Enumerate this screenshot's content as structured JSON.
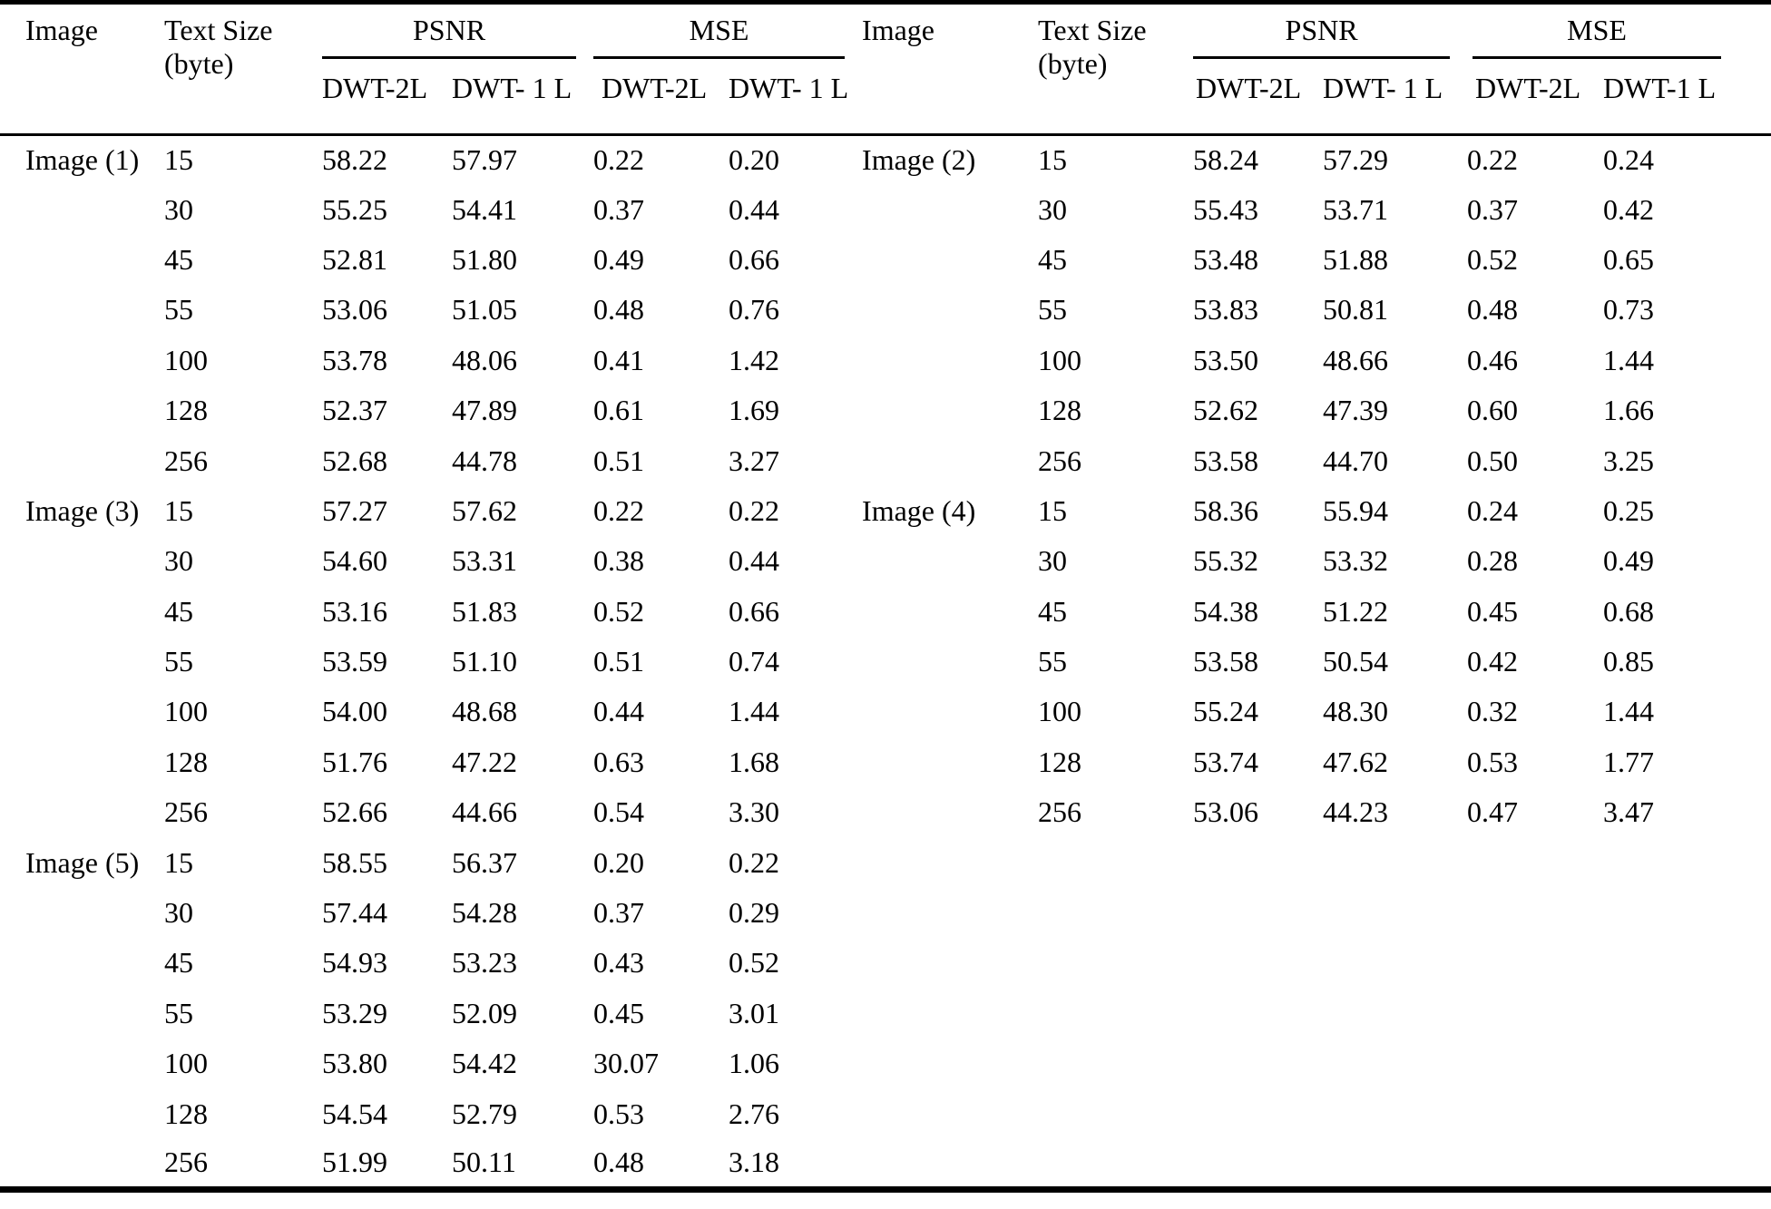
{
  "header": {
    "image_label": "Image",
    "text_size_line1": "Text Size",
    "text_size_line2": "(byte)",
    "psnr_label": "PSNR",
    "mse_label": "MSE",
    "sub_labels": [
      "DWT-2L",
      "DWT- 1 L",
      "DWT-2L",
      "DWT- 1 L",
      "DWT-2L",
      "DWT- 1 L",
      "DWT-2L",
      "DWT-1 L"
    ]
  },
  "left_groups": [
    {
      "label": "Image (1)",
      "rows": [
        [
          "15",
          "58.22",
          "57.97",
          "0.22",
          "0.20"
        ],
        [
          "30",
          "55.25",
          "54.41",
          "0.37",
          "0.44"
        ],
        [
          "45",
          "52.81",
          "51.80",
          "0.49",
          "0.66"
        ],
        [
          "55",
          "53.06",
          "51.05",
          "0.48",
          "0.76"
        ],
        [
          "100",
          "53.78",
          "48.06",
          "0.41",
          "1.42"
        ],
        [
          "128",
          "52.37",
          "47.89",
          "0.61",
          "1.69"
        ],
        [
          "256",
          "52.68",
          "44.78",
          "0.51",
          "3.27"
        ]
      ]
    },
    {
      "label": "Image (3)",
      "rows": [
        [
          "15",
          "57.27",
          "57.62",
          "0.22",
          "0.22"
        ],
        [
          "30",
          "54.60",
          "53.31",
          "0.38",
          "0.44"
        ],
        [
          "45",
          "53.16",
          "51.83",
          "0.52",
          "0.66"
        ],
        [
          "55",
          "53.59",
          "51.10",
          "0.51",
          "0.74"
        ],
        [
          "100",
          "54.00",
          "48.68",
          "0.44",
          "1.44"
        ],
        [
          "128",
          "51.76",
          "47.22",
          "0.63",
          "1.68"
        ],
        [
          "256",
          "52.66",
          "44.66",
          "0.54",
          "3.30"
        ]
      ]
    },
    {
      "label": "Image (5)",
      "rows": [
        [
          "15",
          "58.55",
          "56.37",
          "0.20",
          "0.22"
        ],
        [
          "30",
          "57.44",
          "54.28",
          "0.37",
          "0.29"
        ],
        [
          "45",
          "54.93",
          "53.23",
          "0.43",
          "0.52"
        ],
        [
          "55",
          "53.29",
          "52.09",
          "0.45",
          "3.01"
        ],
        [
          "100",
          "53.80",
          "54.42",
          "30.07",
          "1.06"
        ],
        [
          "128",
          "54.54",
          "52.79",
          "0.53",
          "2.76"
        ],
        [
          "256",
          "51.99",
          "50.11",
          "0.48",
          "3.18"
        ]
      ]
    }
  ],
  "right_groups": [
    {
      "label": "Image (2)",
      "rows": [
        [
          "15",
          "58.24",
          "57.29",
          "0.22",
          "0.24"
        ],
        [
          "30",
          "55.43",
          "53.71",
          "0.37",
          "0.42"
        ],
        [
          "45",
          "53.48",
          "51.88",
          "0.52",
          "0.65"
        ],
        [
          "55",
          "53.83",
          "50.81",
          "0.48",
          "0.73"
        ],
        [
          "100",
          "53.50",
          "48.66",
          "0.46",
          "1.44"
        ],
        [
          "128",
          "52.62",
          "47.39",
          "0.60",
          "1.66"
        ],
        [
          "256",
          "53.58",
          "44.70",
          "0.50",
          "3.25"
        ]
      ]
    },
    {
      "label": "Image (4)",
      "rows": [
        [
          "15",
          "58.36",
          "55.94",
          "0.24",
          "0.25"
        ],
        [
          "30",
          "55.32",
          "53.32",
          "0.28",
          "0.49"
        ],
        [
          "45",
          "54.38",
          "51.22",
          "0.45",
          "0.68"
        ],
        [
          "55",
          "53.58",
          "50.54",
          "0.42",
          "0.85"
        ],
        [
          "100",
          "55.24",
          "48.30",
          "0.32",
          "1.44"
        ],
        [
          "128",
          "53.74",
          "47.62",
          "0.53",
          "1.77"
        ],
        [
          "256",
          "53.06",
          "44.23",
          "0.47",
          "3.47"
        ]
      ]
    }
  ]
}
